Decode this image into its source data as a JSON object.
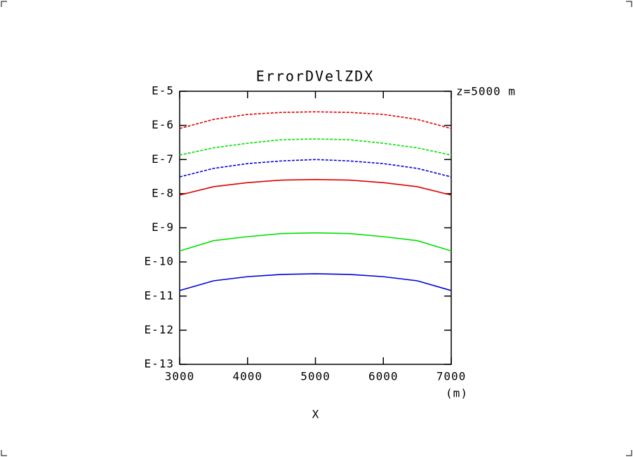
{
  "chart_data": {
    "type": "line",
    "title": "ErrorDVelZDX",
    "annotation": "z=5000 m",
    "x_unit": "(m)",
    "x_label": "X",
    "x": [
      3000,
      3500,
      4000,
      4500,
      5000,
      5500,
      6000,
      6500,
      7000
    ],
    "xlim": [
      3000,
      7000
    ],
    "xticks": [
      3000,
      4000,
      5000,
      6000,
      7000
    ],
    "ylim": [
      1e-13,
      1e-05
    ],
    "y_scale": "log",
    "yticks": [
      {
        "value": 1e-05,
        "label": "E-5"
      },
      {
        "value": 1e-06,
        "label": "E-6"
      },
      {
        "value": 1e-07,
        "label": "E-7"
      },
      {
        "value": 1e-08,
        "label": "E-8"
      },
      {
        "value": 1e-09,
        "label": "E-9"
      },
      {
        "value": 1e-10,
        "label": "E-10"
      },
      {
        "value": 1e-11,
        "label": "E-11"
      },
      {
        "value": 1e-12,
        "label": "E-12"
      },
      {
        "value": 1e-13,
        "label": "E-13"
      }
    ],
    "series": [
      {
        "color": "#dd0000",
        "dashed": true,
        "values": [
          8.1e-07,
          1.5e-06,
          2.1e-06,
          2.4e-06,
          2.5e-06,
          2.4e-06,
          2.1e-06,
          1.5e-06,
          8.1e-07
        ]
      },
      {
        "color": "#00e000",
        "dashed": true,
        "values": [
          1.35e-07,
          2.2e-07,
          3e-07,
          3.8e-07,
          4e-07,
          3.8e-07,
          3e-07,
          2.2e-07,
          1.35e-07
        ]
      },
      {
        "color": "#0000dd",
        "dashed": true,
        "values": [
          3.1e-08,
          5.5e-08,
          7.6e-08,
          9.1e-08,
          1e-07,
          9.1e-08,
          7.6e-08,
          5.5e-08,
          3.1e-08
        ]
      },
      {
        "color": "#dd0000",
        "dashed": false,
        "values": [
          9.1e-09,
          1.6e-08,
          2.1e-08,
          2.5e-08,
          2.6e-08,
          2.5e-08,
          2.1e-08,
          1.6e-08,
          9.1e-09
        ]
      },
      {
        "color": "#00e000",
        "dashed": false,
        "values": [
          2.1e-10,
          4.2e-10,
          5.5e-10,
          6.8e-10,
          7.1e-10,
          6.8e-10,
          5.5e-10,
          4.2e-10,
          2.1e-10
        ]
      },
      {
        "color": "#0000dd",
        "dashed": false,
        "values": [
          1.45e-11,
          2.8e-11,
          3.7e-11,
          4.3e-11,
          4.5e-11,
          4.3e-11,
          3.7e-11,
          2.8e-11,
          1.45e-11
        ]
      }
    ]
  }
}
